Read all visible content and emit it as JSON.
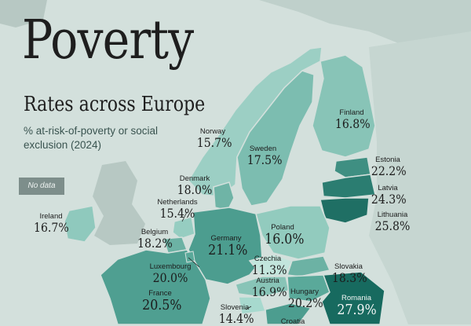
{
  "title": "Poverty",
  "subtitle": "Rates across Europe",
  "description": "% at-risk-of-poverty or social exclusion (2024)",
  "legend": {
    "no_data": "No data"
  },
  "colors": {
    "background": "#d3e0dc",
    "low": "#a6d8cd",
    "mid": "#5aa99a",
    "high": "#1e6f63",
    "no_data": "#7d8e8b"
  },
  "countries": [
    {
      "name": "Norway",
      "value": "15.7%"
    },
    {
      "name": "Sweden",
      "value": "17.5%"
    },
    {
      "name": "Finland",
      "value": "16.8%"
    },
    {
      "name": "Estonia",
      "value": "22.2%"
    },
    {
      "name": "Latvia",
      "value": "24.3%"
    },
    {
      "name": "Lithuania",
      "value": "25.8%"
    },
    {
      "name": "Denmark",
      "value": "18.0%"
    },
    {
      "name": "Netherlands",
      "value": "15.4%"
    },
    {
      "name": "Ireland",
      "value": "16.7%"
    },
    {
      "name": "Belgium",
      "value": "18.2%"
    },
    {
      "name": "Germany",
      "value": "21.1%"
    },
    {
      "name": "Poland",
      "value": "16.0%"
    },
    {
      "name": "Czechia",
      "value": "11.3%"
    },
    {
      "name": "Luxembourg",
      "value": "20.0%"
    },
    {
      "name": "Slovakia",
      "value": "18.3%"
    },
    {
      "name": "Austria",
      "value": "16.9%"
    },
    {
      "name": "Hungary",
      "value": "20.2%"
    },
    {
      "name": "France",
      "value": "20.5%"
    },
    {
      "name": "Slovenia",
      "value": "14.4%"
    },
    {
      "name": "Romania",
      "value": "27.9%"
    },
    {
      "name": "Croatia",
      "value": ""
    }
  ]
}
